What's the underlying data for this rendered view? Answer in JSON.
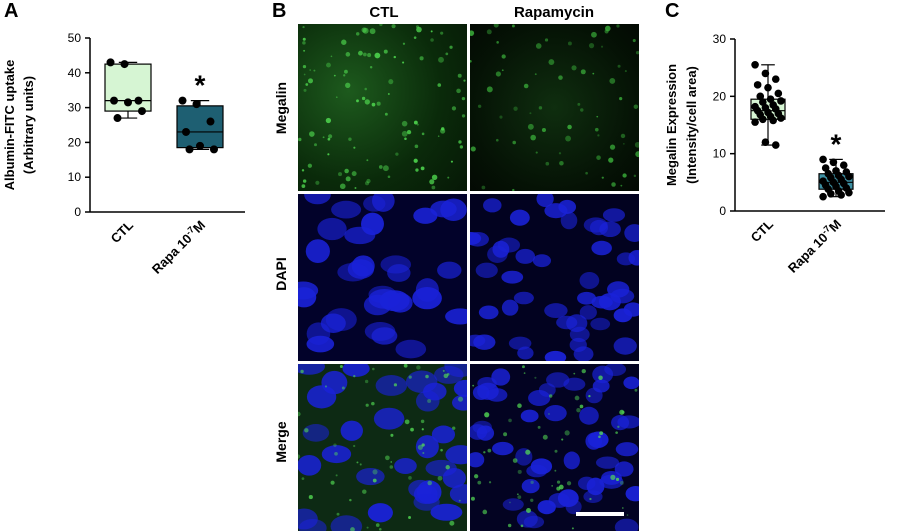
{
  "panels": {
    "a": {
      "letter": "A"
    },
    "b": {
      "letter": "B"
    },
    "c": {
      "letter": "C"
    }
  },
  "colors": {
    "ctl_fill": "#d6f5d3",
    "rapa_fill": "#1e5f72",
    "c_rapa_fill": "#3d8fa2",
    "green_channel": "#1f8a1f",
    "blue_channel": "#1a22d8"
  },
  "chart_data": [
    {
      "type": "box",
      "panel": "A",
      "categories": [
        "CTL",
        "Rapa 10"
      ],
      "category_superscript": "-7",
      "category_suffix": "M",
      "ylabel_line1": "Albumin-FITC uptake",
      "ylabel_line2": "(Arbitrary units)",
      "ylim": [
        0,
        50
      ],
      "yticks": [
        0,
        10,
        20,
        30,
        40,
        50
      ],
      "significance": "*",
      "boxes": [
        {
          "name": "CTL",
          "min": 27,
          "q1": 29,
          "median": 32,
          "q3": 42.5,
          "max": 43
        },
        {
          "name": "Rapa 10-7M",
          "min": 18,
          "q1": 18.5,
          "median": 23,
          "q3": 30.5,
          "max": 32
        }
      ],
      "points": [
        [
          43,
          42.5,
          32,
          32,
          31.5,
          29,
          27
        ],
        [
          32,
          31,
          26,
          23,
          19,
          18,
          18
        ]
      ]
    },
    {
      "type": "box",
      "panel": "C",
      "categories": [
        "CTL",
        "Rapa 10"
      ],
      "category_superscript": "-7",
      "category_suffix": "M",
      "ylabel_line1": "Megalin Expression",
      "ylabel_line2": "(Intensity/cell area)",
      "ylim": [
        0,
        30
      ],
      "yticks": [
        0,
        10,
        20,
        30
      ],
      "significance": "*",
      "boxes": [
        {
          "name": "CTL",
          "min": 11.5,
          "q1": 16,
          "median": 17.5,
          "q3": 19.5,
          "max": 25.5
        },
        {
          "name": "Rapa 10-7M",
          "min": 2.5,
          "q1": 3.8,
          "median": 5,
          "q3": 6.5,
          "max": 9
        }
      ],
      "points": [
        [
          25.5,
          24,
          23,
          22,
          21.5,
          20.5,
          20,
          19.5,
          19.2,
          19,
          18.5,
          18.2,
          18,
          17.8,
          17.5,
          17.2,
          17,
          16.8,
          16.5,
          16.2,
          16,
          15.8,
          15.5,
          12,
          11.5
        ],
        [
          9,
          8.5,
          8,
          7.5,
          7,
          6.8,
          6.5,
          6.2,
          6,
          5.8,
          5.5,
          5.2,
          5,
          4.8,
          4.5,
          4.3,
          4,
          3.8,
          3.5,
          3.2,
          3,
          2.8,
          2.5
        ]
      ]
    }
  ],
  "micrograph": {
    "col_labels": [
      "CTL",
      "Rapamycin"
    ],
    "row_labels": [
      "Megalin",
      "DAPI",
      "Merge"
    ]
  }
}
